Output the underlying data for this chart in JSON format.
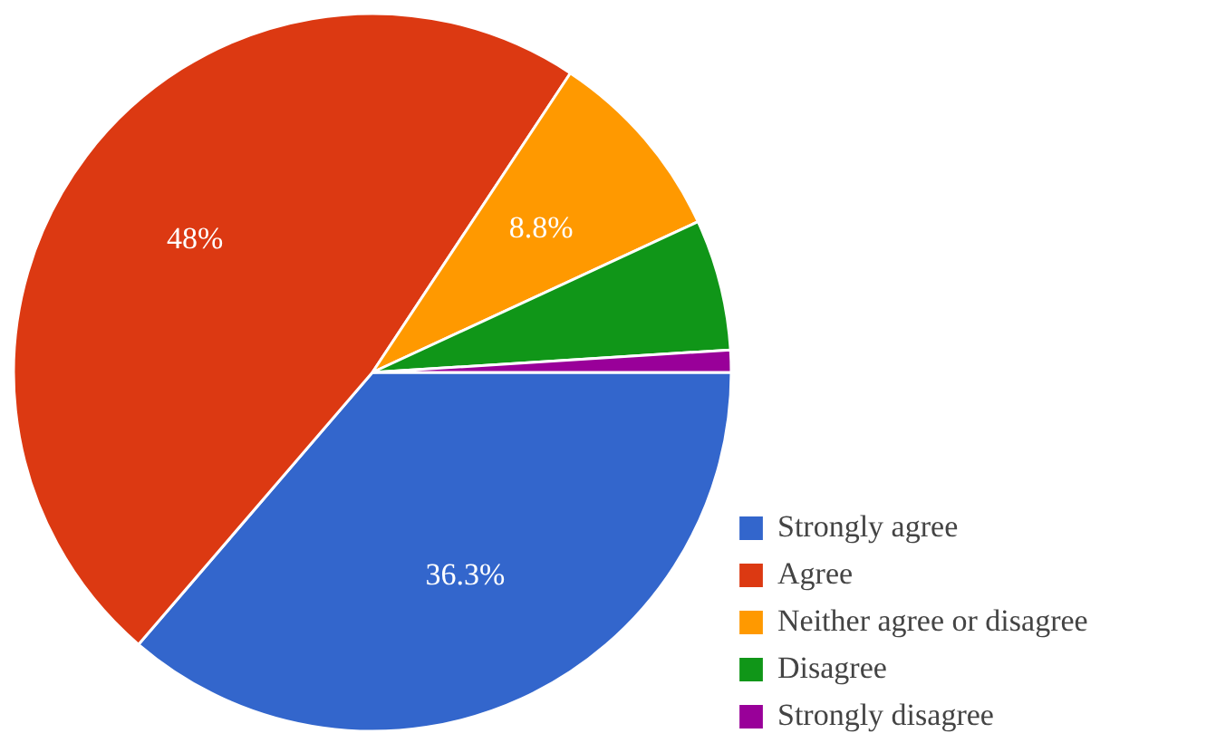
{
  "chart_data": {
    "type": "pie",
    "categories": [
      "Strongly agree",
      "Agree",
      "Neither agree or disagree",
      "Disagree",
      "Strongly disagree"
    ],
    "values": [
      36.3,
      48,
      8.8,
      5.9,
      1.0
    ],
    "colors": [
      "#3366cc",
      "#dc3912",
      "#ff9900",
      "#109618",
      "#990099"
    ],
    "value_labels": [
      "36.3%",
      "48%",
      "8.8%",
      null,
      null
    ],
    "legend": "bottom right"
  }
}
